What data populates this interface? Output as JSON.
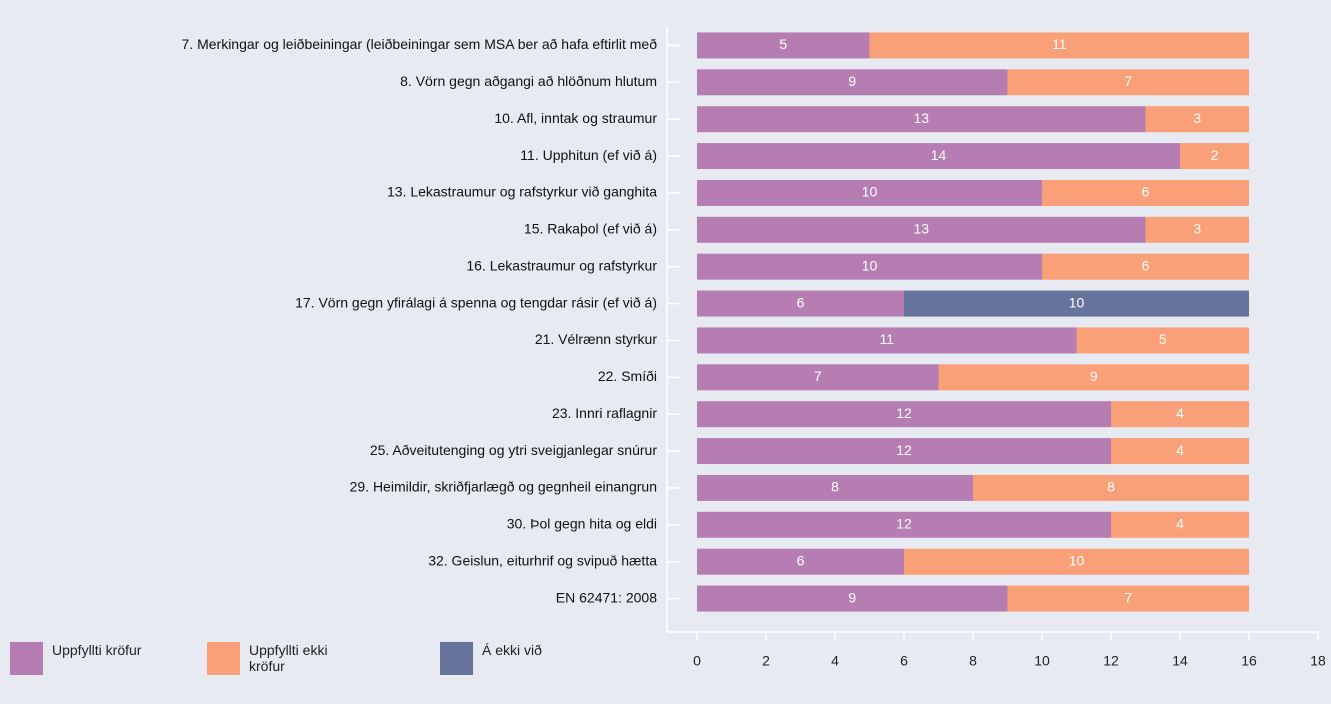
{
  "chart_data": {
    "type": "stacked_barh",
    "categories": [
      "7. Merkingar og leiðbeiningar (leiðbeiningar sem MSA ber að hafa eftirlit með",
      "8. Vörn gegn aðgangi að hlöðnum hlutum",
      "10. Afl, inntak og straumur",
      "11. Upphitun (ef við á)",
      "13. Lekastraumur og rafstyrkur við ganghita",
      "15. Rakaþol (ef við á)",
      "16. Lekastraumur og rafstyrkur",
      "17. Vörn gegn yfirálagi á spenna og tengdar rásir (ef við á)",
      "21. Vélrænn styrkur",
      "22. Smíði",
      "23. Innri raflagnir",
      "25. Aðveitutenging og ytri sveigjanlegar snúrur",
      "29. Heimildir, skriðfjarlægð og gegnheil einangrun",
      "30. Þol gegn hita og eldi",
      "32. Geislun, eiturhrif og svipuð hætta",
      "EN 62471: 2008"
    ],
    "series": [
      {
        "name": "Uppfyllti kröfur",
        "color": "#b67db2",
        "values": [
          5,
          9,
          13,
          14,
          10,
          13,
          10,
          6,
          11,
          7,
          12,
          12,
          8,
          12,
          6,
          9
        ]
      },
      {
        "name": "Uppfyllti ekki kröfur",
        "color": "#f9a078",
        "values": [
          11,
          7,
          3,
          2,
          6,
          3,
          6,
          null,
          5,
          9,
          4,
          4,
          8,
          4,
          10,
          7
        ]
      },
      {
        "name": "Á ekki við",
        "color": "#66739a",
        "values": [
          null,
          null,
          null,
          null,
          null,
          null,
          null,
          10,
          null,
          null,
          null,
          null,
          null,
          null,
          null,
          null
        ]
      }
    ],
    "xlim": [
      0,
      18
    ],
    "xticks": [
      0,
      2,
      4,
      6,
      8,
      10,
      12,
      14,
      16,
      18
    ]
  }
}
